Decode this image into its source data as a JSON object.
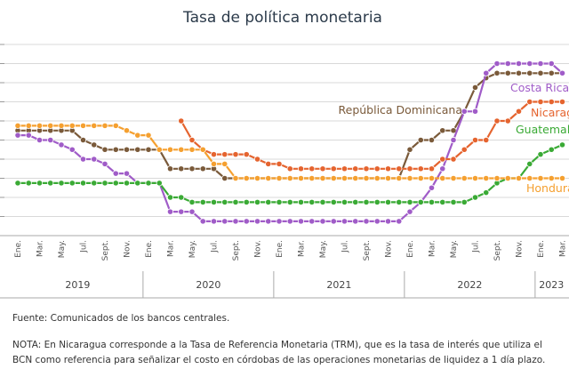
{
  "source_note": "Fuente: Comunicados de los bancos centrales.",
  "nota": "NOTA: En Nicaragua corresponde a la Tasa de Referencia Monetaria (TRM), que es la tasa de interés que utiliza el BCN como referencia para señalizar el costo en córdobas de las operaciones monetarias de liquidez a 1 día plazo.",
  "chart_data": {
    "type": "line",
    "title": "Tasa de política monetaria",
    "xlabel": "",
    "ylabel": "",
    "ylim": [
      0,
      10
    ],
    "grid": true,
    "x": [
      "2019-01",
      "2019-02",
      "2019-03",
      "2019-04",
      "2019-05",
      "2019-06",
      "2019-07",
      "2019-08",
      "2019-09",
      "2019-10",
      "2019-11",
      "2019-12",
      "2020-01",
      "2020-02",
      "2020-03",
      "2020-04",
      "2020-05",
      "2020-06",
      "2020-07",
      "2020-08",
      "2020-09",
      "2020-10",
      "2020-11",
      "2020-12",
      "2021-01",
      "2021-02",
      "2021-03",
      "2021-04",
      "2021-05",
      "2021-06",
      "2021-07",
      "2021-08",
      "2021-09",
      "2021-10",
      "2021-11",
      "2021-12",
      "2022-01",
      "2022-02",
      "2022-03",
      "2022-04",
      "2022-05",
      "2022-06",
      "2022-07",
      "2022-08",
      "2022-09",
      "2022-10",
      "2022-11",
      "2022-12",
      "2023-01",
      "2023-02",
      "2023-03"
    ],
    "tick_labels": [
      "Ene.",
      "Mar.",
      "May.",
      "Jul.",
      "Sept.",
      "Nov.",
      "Ene.",
      "Mar.",
      "May.",
      "Jul.",
      "Sept.",
      "Nov.",
      "Ene.",
      "Mar.",
      "May.",
      "Jul.",
      "Sept.",
      "Nov.",
      "Ene.",
      "Mar.",
      "May.",
      "Jul.",
      "Sept.",
      "Nov.",
      "Ene.",
      "Mar."
    ],
    "years": [
      "2019",
      "2020",
      "2021",
      "2022",
      "2023"
    ],
    "series": [
      {
        "name": "República Dominicana",
        "color": "#7a5a3a",
        "values": [
          5.5,
          5.5,
          5.5,
          5.5,
          5.5,
          5.5,
          5.0,
          4.75,
          4.5,
          4.5,
          4.5,
          4.5,
          4.5,
          4.5,
          3.5,
          3.5,
          3.5,
          3.5,
          3.5,
          3.0,
          3.0,
          3.0,
          3.0,
          3.0,
          3.0,
          3.0,
          3.0,
          3.0,
          3.0,
          3.0,
          3.0,
          3.0,
          3.0,
          3.0,
          3.0,
          3.0,
          4.5,
          5.0,
          5.0,
          5.5,
          5.5,
          6.5,
          7.75,
          8.25,
          8.5,
          8.5,
          8.5,
          8.5,
          8.5,
          8.5,
          8.5
        ]
      },
      {
        "name": "Costa Rica",
        "color": "#a05cc8",
        "values": [
          5.25,
          5.25,
          5.0,
          5.0,
          4.75,
          4.5,
          4.0,
          4.0,
          3.75,
          3.25,
          3.25,
          2.75,
          2.75,
          2.75,
          1.25,
          1.25,
          1.25,
          0.75,
          0.75,
          0.75,
          0.75,
          0.75,
          0.75,
          0.75,
          0.75,
          0.75,
          0.75,
          0.75,
          0.75,
          0.75,
          0.75,
          0.75,
          0.75,
          0.75,
          0.75,
          0.75,
          1.25,
          1.75,
          2.5,
          3.5,
          5.0,
          6.5,
          6.5,
          8.5,
          9.0,
          9.0,
          9.0,
          9.0,
          9.0,
          9.0,
          8.5
        ]
      },
      {
        "name": "Nicaragua",
        "color": "#e5642f",
        "values": [
          null,
          null,
          null,
          null,
          null,
          null,
          null,
          null,
          null,
          null,
          null,
          null,
          null,
          null,
          null,
          6.0,
          5.0,
          4.5,
          4.25,
          4.25,
          4.25,
          4.25,
          4.0,
          3.75,
          3.75,
          3.5,
          3.5,
          3.5,
          3.5,
          3.5,
          3.5,
          3.5,
          3.5,
          3.5,
          3.5,
          3.5,
          3.5,
          3.5,
          3.5,
          4.0,
          4.0,
          4.5,
          5.0,
          5.0,
          6.0,
          6.0,
          6.5,
          7.0,
          7.0,
          7.0,
          7.0
        ]
      },
      {
        "name": "Guatemala",
        "color": "#3aaa35",
        "values": [
          2.75,
          2.75,
          2.75,
          2.75,
          2.75,
          2.75,
          2.75,
          2.75,
          2.75,
          2.75,
          2.75,
          2.75,
          2.75,
          2.75,
          2.0,
          2.0,
          1.75,
          1.75,
          1.75,
          1.75,
          1.75,
          1.75,
          1.75,
          1.75,
          1.75,
          1.75,
          1.75,
          1.75,
          1.75,
          1.75,
          1.75,
          1.75,
          1.75,
          1.75,
          1.75,
          1.75,
          1.75,
          1.75,
          1.75,
          1.75,
          1.75,
          1.75,
          2.0,
          2.25,
          2.75,
          3.0,
          3.0,
          3.75,
          4.25,
          4.5,
          4.75
        ]
      },
      {
        "name": "Honduras",
        "color": "#f5a030",
        "values": [
          5.75,
          5.75,
          5.75,
          5.75,
          5.75,
          5.75,
          5.75,
          5.75,
          5.75,
          5.75,
          5.5,
          5.25,
          5.25,
          4.5,
          4.5,
          4.5,
          4.5,
          4.5,
          3.75,
          3.75,
          3.0,
          3.0,
          3.0,
          3.0,
          3.0,
          3.0,
          3.0,
          3.0,
          3.0,
          3.0,
          3.0,
          3.0,
          3.0,
          3.0,
          3.0,
          3.0,
          3.0,
          3.0,
          3.0,
          3.0,
          3.0,
          3.0,
          3.0,
          3.0,
          3.0,
          3.0,
          3.0,
          3.0,
          3.0,
          3.0,
          3.0
        ]
      }
    ]
  }
}
